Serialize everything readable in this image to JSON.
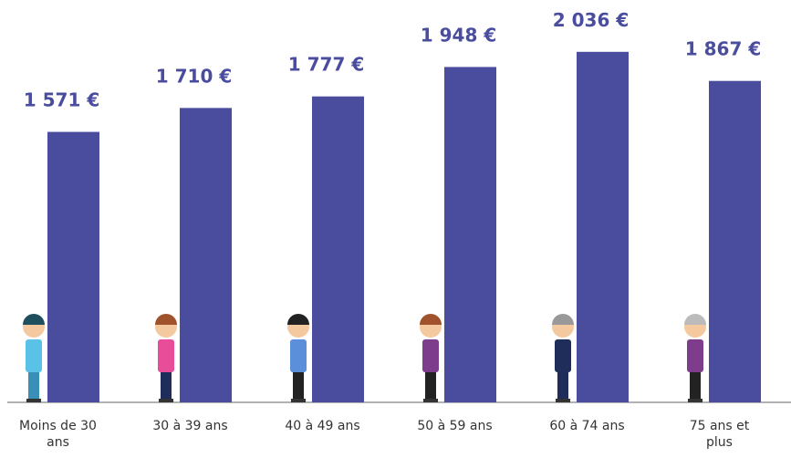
{
  "chart_data": {
    "type": "bar",
    "categories": [
      "Moins de 30 ans",
      "30 à 39 ans",
      "40 à 49 ans",
      "50 à 59 ans",
      "60 à 74 ans",
      "75 ans et plus"
    ],
    "values": [
      1571,
      1710,
      1777,
      1948,
      2036,
      1867
    ],
    "value_labels": [
      "1 571 €",
      "1 710 €",
      "1 777 €",
      "1 948 €",
      "2 036 €",
      "1 867 €"
    ],
    "color": "#4a4c9e",
    "ylim": [
      0,
      2300
    ]
  }
}
